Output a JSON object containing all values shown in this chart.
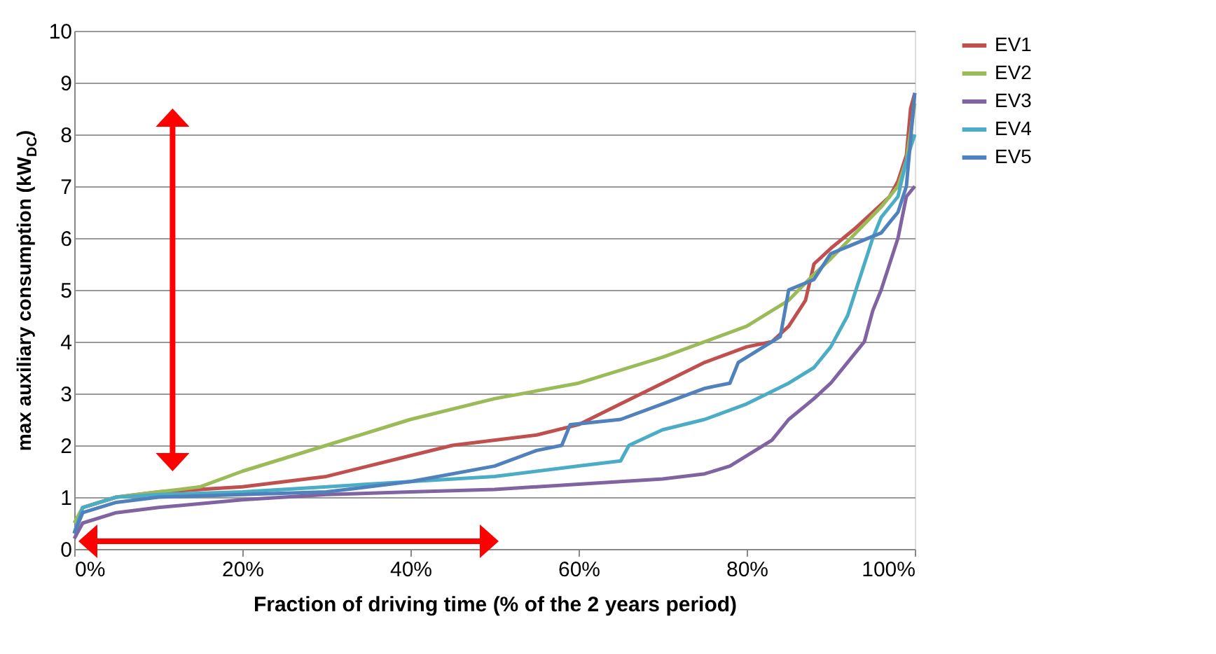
{
  "chart_data": {
    "type": "line",
    "xlabel": "Fraction of driving time (% of the 2 years period)",
    "ylabel": "max auxiliary consumption (kW$_{DC}$)",
    "xlim": [
      0,
      100
    ],
    "ylim": [
      0,
      10
    ],
    "xticks": [
      {
        "value": 0,
        "label": "0%"
      },
      {
        "value": 20,
        "label": "20%"
      },
      {
        "value": 40,
        "label": "40%"
      },
      {
        "value": 60,
        "label": "60%"
      },
      {
        "value": 80,
        "label": "80%"
      },
      {
        "value": 100,
        "label": "100%"
      }
    ],
    "yticks": [
      0,
      1,
      2,
      3,
      4,
      5,
      6,
      7,
      8,
      9,
      10
    ],
    "grid": "y",
    "legend": "right",
    "marker": "none",
    "line_style": "solid",
    "series": [
      {
        "name": "EV1",
        "color": "#c0504d",
        "x": [
          0,
          1,
          5,
          10,
          20,
          30,
          40,
          45,
          55,
          60,
          65,
          70,
          75,
          80,
          83,
          85,
          87,
          88,
          90,
          93,
          95,
          97,
          98,
          99,
          99.5,
          100
        ],
        "values": [
          0.3,
          0.8,
          1.0,
          1.1,
          1.2,
          1.4,
          1.8,
          2.0,
          2.2,
          2.4,
          2.8,
          3.2,
          3.6,
          3.9,
          4.0,
          4.3,
          4.8,
          5.5,
          5.8,
          6.2,
          6.5,
          6.8,
          7.1,
          7.6,
          8.5,
          8.8
        ]
      },
      {
        "name": "EV2",
        "color": "#9bbb59",
        "x": [
          0,
          1,
          5,
          10,
          15,
          20,
          30,
          40,
          50,
          60,
          70,
          80,
          85,
          88,
          90,
          93,
          96,
          98,
          99,
          100
        ],
        "values": [
          0.5,
          0.8,
          1.0,
          1.1,
          1.2,
          1.5,
          2.0,
          2.5,
          2.9,
          3.2,
          3.7,
          4.3,
          4.8,
          5.3,
          5.6,
          6.1,
          6.6,
          7.0,
          7.5,
          8.6
        ]
      },
      {
        "name": "EV3",
        "color": "#8064a2",
        "x": [
          0,
          1,
          5,
          10,
          20,
          30,
          40,
          50,
          60,
          70,
          75,
          78,
          80,
          83,
          85,
          88,
          90,
          92,
          94,
          95,
          96,
          97,
          98,
          99,
          100
        ],
        "values": [
          0.2,
          0.5,
          0.7,
          0.8,
          0.95,
          1.05,
          1.1,
          1.15,
          1.25,
          1.35,
          1.45,
          1.6,
          1.8,
          2.1,
          2.5,
          2.9,
          3.2,
          3.6,
          4.0,
          4.6,
          5.0,
          5.5,
          6.0,
          6.8,
          7.0
        ]
      },
      {
        "name": "EV4",
        "color": "#4bacc6",
        "x": [
          0,
          1,
          5,
          10,
          20,
          30,
          40,
          50,
          60,
          65,
          66,
          70,
          75,
          80,
          85,
          88,
          90,
          92,
          94,
          95,
          96,
          98,
          99,
          100
        ],
        "values": [
          0.3,
          0.8,
          1.0,
          1.05,
          1.1,
          1.2,
          1.3,
          1.4,
          1.6,
          1.7,
          2.0,
          2.3,
          2.5,
          2.8,
          3.2,
          3.5,
          3.9,
          4.5,
          5.5,
          6.0,
          6.4,
          6.8,
          7.5,
          8.0
        ]
      },
      {
        "name": "EV5",
        "color": "#4f81bd",
        "x": [
          0,
          1,
          5,
          10,
          20,
          30,
          40,
          50,
          55,
          58,
          59,
          65,
          70,
          75,
          78,
          79,
          82,
          84,
          85,
          88,
          90,
          93,
          96,
          98,
          99,
          100
        ],
        "values": [
          0.3,
          0.7,
          0.9,
          1.0,
          1.05,
          1.1,
          1.3,
          1.6,
          1.9,
          2.0,
          2.4,
          2.5,
          2.8,
          3.1,
          3.2,
          3.6,
          3.9,
          4.1,
          5.0,
          5.2,
          5.7,
          5.9,
          6.1,
          6.5,
          7.0,
          8.8
        ]
      }
    ]
  }
}
